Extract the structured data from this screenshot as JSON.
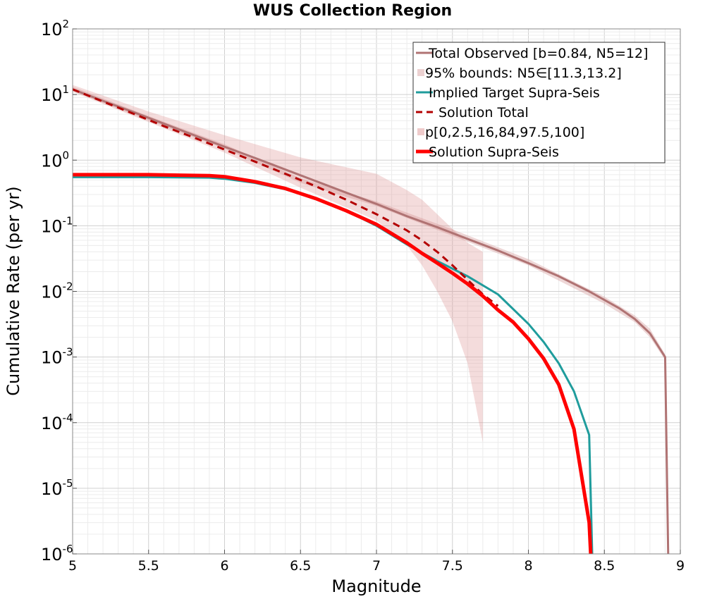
{
  "chart_data": {
    "type": "line",
    "title": "WUS Collection Region",
    "xlabel": "Magnitude",
    "ylabel": "Cumulative Rate (per yr)",
    "xlim": [
      5,
      9
    ],
    "ylim": [
      1e-06,
      100
    ],
    "yscale": "log",
    "grid": true,
    "legend_position": "top-right",
    "x_ticks": [
      "5",
      "5.5",
      "6",
      "6.5",
      "7",
      "7.5",
      "8",
      "8.5",
      "9"
    ],
    "y_ticks": [
      {
        "base": "10",
        "exp": "-6"
      },
      {
        "base": "10",
        "exp": "-5"
      },
      {
        "base": "10",
        "exp": "-4"
      },
      {
        "base": "10",
        "exp": "-3"
      },
      {
        "base": "10",
        "exp": "-2"
      },
      {
        "base": "10",
        "exp": "-1"
      },
      {
        "base": "10",
        "exp": "0"
      },
      {
        "base": "10",
        "exp": "1"
      },
      {
        "base": "10",
        "exp": "2"
      }
    ],
    "series": [
      {
        "name": "Total Observed [b=0.84, N5=12]",
        "kind": "line",
        "color": "#b07373",
        "width": 3,
        "x": [
          5.0,
          5.2,
          5.4,
          5.6,
          5.8,
          6.0,
          6.2,
          6.4,
          6.6,
          6.8,
          7.0,
          7.2,
          7.4,
          7.6,
          7.8,
          8.0,
          8.2,
          8.4,
          8.6,
          8.7,
          8.8,
          8.9,
          8.92
        ],
        "y": [
          12,
          8.0,
          5.4,
          3.6,
          2.4,
          1.6,
          1.08,
          0.72,
          0.48,
          0.32,
          0.215,
          0.14,
          0.095,
          0.063,
          0.042,
          0.027,
          0.017,
          0.01,
          0.0055,
          0.0038,
          0.0023,
          0.001,
          1e-06
        ]
      },
      {
        "name": "95% bounds: N5∈[11.3,13.2]",
        "kind": "band",
        "color": "#d49a9a",
        "opacity": 0.4,
        "x": [
          5.0,
          5.5,
          6.0,
          6.5,
          7.0,
          7.5,
          8.0,
          8.5,
          8.7,
          8.8,
          8.9
        ],
        "lower": [
          11.3,
          4.0,
          1.5,
          0.45,
          0.2,
          0.07,
          0.025,
          0.0065,
          0.0034,
          0.002,
          0.0009
        ],
        "upper": [
          13.2,
          4.7,
          1.75,
          0.53,
          0.235,
          0.088,
          0.031,
          0.0083,
          0.0043,
          0.0027,
          0.0011
        ]
      },
      {
        "name": "Implied Target Supra-Seis",
        "kind": "line",
        "color": "#1f9c9c",
        "width": 3,
        "x": [
          5.0,
          5.5,
          5.9,
          6.0,
          6.2,
          6.4,
          6.6,
          6.8,
          7.0,
          7.2,
          7.4,
          7.6,
          7.8,
          8.0,
          8.1,
          8.2,
          8.3,
          8.4,
          8.42
        ],
        "y": [
          0.55,
          0.55,
          0.54,
          0.52,
          0.45,
          0.36,
          0.26,
          0.17,
          0.1,
          0.052,
          0.029,
          0.017,
          0.009,
          0.0032,
          0.0017,
          0.0008,
          0.0003,
          6.5e-05,
          1e-06
        ]
      },
      {
        "name": "Solution Total",
        "kind": "dashed",
        "color": "#b30000",
        "width": 3,
        "x": [
          5.0,
          5.2,
          5.4,
          5.6,
          5.8,
          6.0,
          6.2,
          6.4,
          6.6,
          6.8,
          7.0,
          7.2,
          7.3,
          7.4,
          7.5,
          7.6,
          7.7,
          7.8
        ],
        "y": [
          12,
          7.8,
          5.1,
          3.3,
          2.2,
          1.45,
          0.95,
          0.62,
          0.4,
          0.25,
          0.15,
          0.085,
          0.06,
          0.04,
          0.025,
          0.015,
          0.009,
          0.006
        ]
      },
      {
        "name": "p[0,2.5,16,84,97.5,100]",
        "kind": "band",
        "color": "#dc8c8c",
        "opacity": 0.3,
        "x": [
          5.0,
          5.5,
          6.0,
          6.5,
          7.0,
          7.2,
          7.3,
          7.4,
          7.5,
          7.6,
          7.7
        ],
        "lower": [
          11.0,
          3.8,
          1.3,
          0.38,
          0.12,
          0.05,
          0.025,
          0.01,
          0.0035,
          0.0008,
          5e-05
        ],
        "upper": [
          14.0,
          5.5,
          2.4,
          1.1,
          0.62,
          0.35,
          0.25,
          0.15,
          0.09,
          0.055,
          0.04
        ]
      },
      {
        "name": "Solution Supra-Seis",
        "kind": "line",
        "color": "#ff0000",
        "width": 5,
        "x": [
          5.0,
          5.5,
          5.9,
          6.0,
          6.2,
          6.4,
          6.6,
          6.8,
          7.0,
          7.2,
          7.3,
          7.4,
          7.5,
          7.6,
          7.7,
          7.8,
          7.9,
          8.0,
          8.1,
          8.2,
          8.3,
          8.4,
          8.41
        ],
        "y": [
          0.6,
          0.6,
          0.58,
          0.56,
          0.47,
          0.37,
          0.26,
          0.17,
          0.105,
          0.055,
          0.038,
          0.027,
          0.019,
          0.013,
          0.0085,
          0.0052,
          0.0034,
          0.0019,
          0.00095,
          0.00038,
          8e-05,
          3e-06,
          1e-06
        ]
      }
    ]
  }
}
